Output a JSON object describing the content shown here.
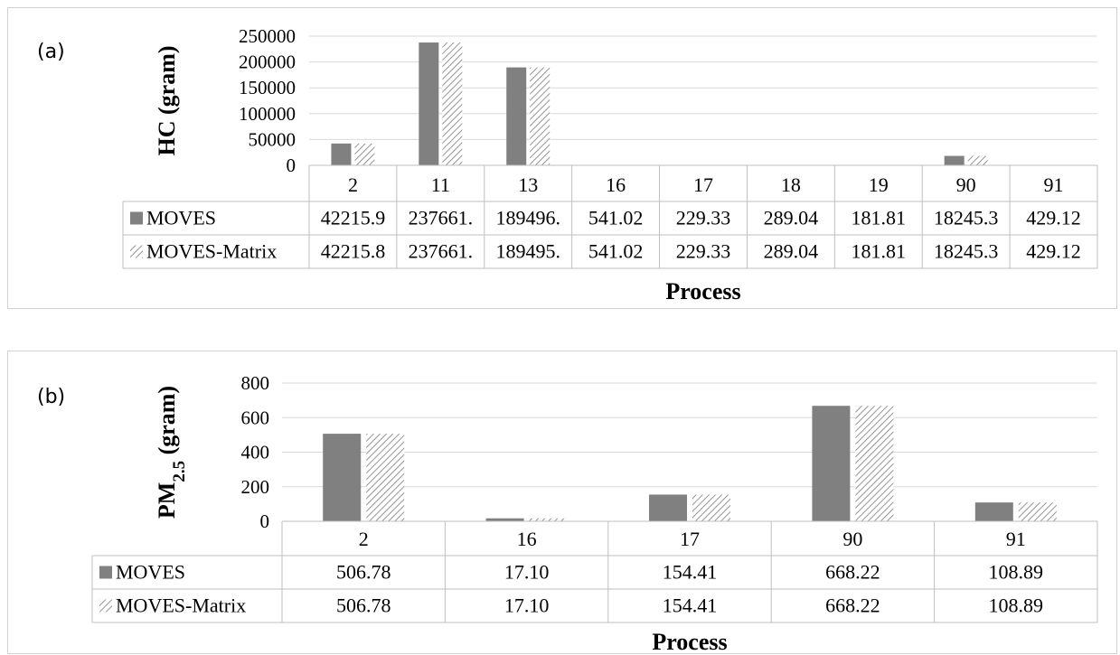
{
  "chart_data": [
    {
      "panel_label": "(a)",
      "type": "bar",
      "ylabel": "HC (gram)",
      "xlabel": "Process",
      "categories": [
        "2",
        "11",
        "13",
        "16",
        "17",
        "18",
        "19",
        "90",
        "91"
      ],
      "yticks": [
        "250000",
        "200000",
        "150000",
        "100000",
        "50000",
        "0"
      ],
      "ylim": [
        0,
        250000
      ],
      "grid": true,
      "legend_placement": "data-table",
      "series": [
        {
          "name": "MOVES",
          "color": "#808080",
          "pattern": "solid",
          "values": [
            42215.9,
            237661,
            189496,
            541.02,
            229.33,
            289.04,
            181.81,
            18245.3,
            429.12
          ],
          "table_values": [
            "42215.9",
            "237661.",
            "189496.",
            "541.02",
            "229.33",
            "289.04",
            "181.81",
            "18245.3",
            "429.12"
          ]
        },
        {
          "name": "MOVES-Matrix",
          "color": "#808080",
          "pattern": "hatched",
          "values": [
            42215.8,
            237661,
            189495,
            541.02,
            229.33,
            289.04,
            181.81,
            18245.3,
            429.12
          ],
          "table_values": [
            "42215.8",
            "237661.",
            "189495.",
            "541.02",
            "229.33",
            "289.04",
            "181.81",
            "18245.3",
            "429.12"
          ]
        }
      ]
    },
    {
      "panel_label": "(b)",
      "type": "bar",
      "ylabel": "PM",
      "ylabel_sub": "2.5",
      "ylabel_suffix": " (gram)",
      "xlabel": "Process",
      "categories": [
        "2",
        "16",
        "17",
        "90",
        "91"
      ],
      "yticks": [
        "800",
        "600",
        "400",
        "200",
        "0"
      ],
      "ylim": [
        0,
        800
      ],
      "grid": true,
      "legend_placement": "data-table",
      "series": [
        {
          "name": "MOVES",
          "color": "#808080",
          "pattern": "solid",
          "values": [
            506.78,
            17.1,
            154.41,
            668.22,
            108.89
          ],
          "table_values": [
            "506.78",
            "17.10",
            "154.41",
            "668.22",
            "108.89"
          ]
        },
        {
          "name": "MOVES-Matrix",
          "color": "#808080",
          "pattern": "hatched",
          "values": [
            506.78,
            17.1,
            154.41,
            668.22,
            108.89
          ],
          "table_values": [
            "506.78",
            "17.10",
            "154.41",
            "668.22",
            "108.89"
          ]
        }
      ]
    }
  ]
}
